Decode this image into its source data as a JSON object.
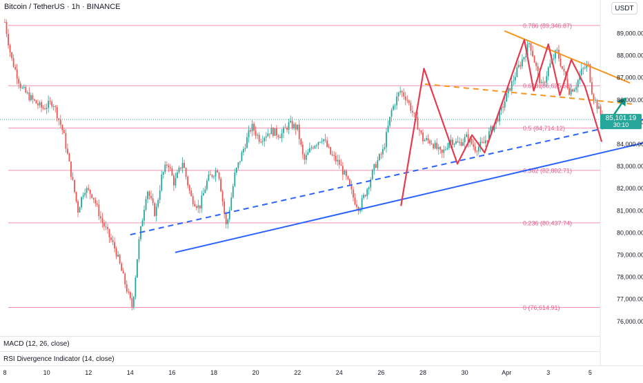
{
  "header": {
    "title": "Bitcoin / TetherUS · 1h · BINANCE",
    "currency": "USDT"
  },
  "price_label": {
    "value": "85,101.19",
    "countdown": "30:10"
  },
  "indicators": [
    {
      "label": "MACD (12, 26, close)"
    },
    {
      "label": "RSI Divergence Indicator (14, close)"
    }
  ],
  "colors": {
    "up": "#26a69a",
    "down": "#ef5350",
    "fib": "#f48fb1",
    "fib_text": "#e0608f",
    "pattern": "#e53950",
    "resistance": "#f7941d",
    "support": "#2962ff",
    "arrow": "#0f9a85"
  },
  "chart_data": {
    "type": "line",
    "x_tick_labels": [
      "8",
      "10",
      "12",
      "14",
      "16",
      "18",
      "20",
      "22",
      "24",
      "26",
      "28",
      "30",
      "Apr",
      "3",
      "5"
    ],
    "y_tick_labels": [
      "89,000.00",
      "88,000.00",
      "87,000.00",
      "86,000.00",
      "85,000.00",
      "84,000.00",
      "83,000.00",
      "82,000.00",
      "81,000.00",
      "80,000.00",
      "79,000.00",
      "78,000.00",
      "77,000.00",
      "76,000.00"
    ],
    "ylim": [
      75700,
      89600
    ],
    "fib_levels": [
      {
        "label": "0.786 (89,346.87)",
        "value": 89346.87
      },
      {
        "label": "0.618 (86,625.53)",
        "value": 86625.53
      },
      {
        "label": "0.5 (84,714.12)",
        "value": 84714.12
      },
      {
        "label": "0.382 (82,802.71)",
        "value": 82802.71
      },
      {
        "label": "0.236 (80,437.74)",
        "value": 80437.74
      },
      {
        "label": "0 (76,614.91)",
        "value": 76614.91
      }
    ],
    "price_series": [
      [
        0,
        89500
      ],
      [
        0.3,
        87900
      ],
      [
        0.8,
        86500
      ],
      [
        1.3,
        86000
      ],
      [
        1.8,
        85600
      ],
      [
        2.3,
        85900
      ],
      [
        2.8,
        84500
      ],
      [
        3.2,
        82500
      ],
      [
        3.5,
        81000
      ],
      [
        3.8,
        82000
      ],
      [
        4.2,
        81700
      ],
      [
        4.6,
        80600
      ],
      [
        5.0,
        79800
      ],
      [
        5.3,
        79200
      ],
      [
        5.6,
        78200
      ],
      [
        5.9,
        77200
      ],
      [
        6.1,
        76620
      ],
      [
        6.4,
        79500
      ],
      [
        6.8,
        82000
      ],
      [
        7.2,
        80800
      ],
      [
        7.5,
        82500
      ],
      [
        7.8,
        83200
      ],
      [
        8.1,
        82200
      ],
      [
        8.5,
        83200
      ],
      [
        8.9,
        81600
      ],
      [
        9.3,
        81100
      ],
      [
        9.7,
        82400
      ],
      [
        10.2,
        82900
      ],
      [
        10.6,
        80200
      ],
      [
        11.0,
        82600
      ],
      [
        11.5,
        84000
      ],
      [
        11.8,
        84800
      ],
      [
        12.2,
        84200
      ],
      [
        12.7,
        84600
      ],
      [
        13.2,
        84400
      ],
      [
        13.6,
        84900
      ],
      [
        14.0,
        84700
      ],
      [
        14.3,
        83200
      ],
      [
        14.7,
        83900
      ],
      [
        15.2,
        84300
      ],
      [
        15.6,
        83500
      ],
      [
        16.0,
        83100
      ],
      [
        16.4,
        82300
      ],
      [
        16.7,
        81500
      ],
      [
        16.95,
        81100
      ],
      [
        17.3,
        81900
      ],
      [
        17.7,
        83000
      ],
      [
        18.1,
        83700
      ],
      [
        18.5,
        85500
      ],
      [
        18.9,
        86400
      ],
      [
        19.2,
        86100
      ],
      [
        19.6,
        85200
      ],
      [
        20.0,
        84200
      ],
      [
        20.4,
        84100
      ],
      [
        20.9,
        83500
      ],
      [
        21.3,
        84200
      ],
      [
        21.7,
        84000
      ],
      [
        22.1,
        84300
      ],
      [
        22.5,
        83800
      ],
      [
        22.9,
        84000
      ],
      [
        23.3,
        84700
      ],
      [
        23.7,
        85400
      ],
      [
        24.1,
        86400
      ],
      [
        24.5,
        87300
      ],
      [
        24.9,
        88100
      ],
      [
        25.1,
        88600
      ],
      [
        25.4,
        87500
      ],
      [
        25.7,
        86500
      ],
      [
        26.0,
        87400
      ],
      [
        26.4,
        88200
      ],
      [
        26.7,
        87300
      ],
      [
        27.0,
        86400
      ],
      [
        27.3,
        86600
      ],
      [
        27.6,
        87300
      ],
      [
        27.9,
        87600
      ],
      [
        28.1,
        86300
      ],
      [
        28.3,
        85800
      ],
      [
        28.6,
        85100
      ]
    ],
    "pattern_zigzag": [
      [
        18.95,
        81200
      ],
      [
        20.05,
        87400
      ],
      [
        21.65,
        83100
      ],
      [
        22.35,
        84400
      ],
      [
        22.95,
        83600
      ],
      [
        24.85,
        88700
      ],
      [
        25.3,
        86400
      ],
      [
        26.0,
        88500
      ],
      [
        26.55,
        86200
      ],
      [
        27.1,
        87800
      ],
      [
        27.75,
        86600
      ],
      [
        28.55,
        84100
      ]
    ],
    "projection_arrow": {
      "from": [
        28.7,
        84700
      ],
      "to": [
        29.7,
        86100
      ]
    },
    "trendlines": [
      {
        "name": "descending resistance",
        "style": "solid",
        "color": "#f7941d",
        "points": [
          [
            23.9,
            89100
          ],
          [
            29.9,
            86750
          ]
        ]
      },
      {
        "name": "neckline",
        "style": "dashed",
        "color": "#f7941d",
        "points": [
          [
            20.1,
            86700
          ],
          [
            30.0,
            85800
          ]
        ]
      },
      {
        "name": "ascending support",
        "style": "solid",
        "color": "#2962ff",
        "points": [
          [
            8.15,
            79100
          ],
          [
            32.4,
            84450
          ]
        ]
      },
      {
        "name": "dashed support",
        "style": "dashed",
        "color": "#2962ff",
        "points": [
          [
            6.0,
            79900
          ],
          [
            32.4,
            85500
          ]
        ]
      }
    ],
    "current_price": 85101.19
  }
}
